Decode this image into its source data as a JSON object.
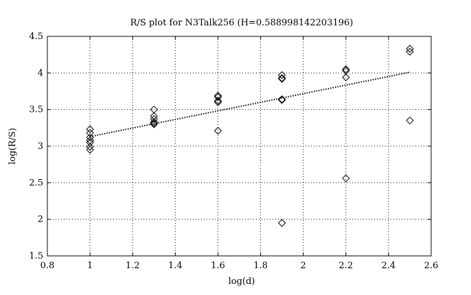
{
  "chart_data": {
    "type": "scatter",
    "title": "R/S plot for N3Talk256 (H=0.588998142203196)",
    "xlabel": "log(d)",
    "ylabel": "log(R/S)",
    "xlim": [
      0.8,
      2.6
    ],
    "ylim": [
      1.5,
      4.5
    ],
    "x_ticks": [
      0.8,
      1,
      1.2,
      1.4,
      1.6,
      1.8,
      2,
      2.2,
      2.4,
      2.6
    ],
    "x_tick_labels": [
      "0.8",
      "1",
      "1.2",
      "1.4",
      "1.6",
      "1.8",
      "2",
      "2.2",
      "2.4",
      "2.6"
    ],
    "y_ticks": [
      1.5,
      2,
      2.5,
      3,
      3.5,
      4,
      4.5
    ],
    "y_tick_labels": [
      "1.5",
      "2",
      "2.5",
      "3",
      "3.5",
      "4",
      "4.5"
    ],
    "grid": true,
    "grid_style": "dotted",
    "marker": "diamond",
    "color": "#000000",
    "series": [
      {
        "points": [
          [
            1.0,
            3.23
          ],
          [
            1.0,
            3.18
          ],
          [
            1.0,
            3.12
          ],
          [
            1.0,
            3.08
          ],
          [
            1.0,
            3.05
          ],
          [
            1.0,
            2.99
          ],
          [
            1.0,
            2.95
          ],
          [
            1.3,
            3.5
          ],
          [
            1.3,
            3.41
          ],
          [
            1.3,
            3.37
          ],
          [
            1.3,
            3.33
          ],
          [
            1.3,
            3.31
          ],
          [
            1.3,
            3.3
          ],
          [
            1.6,
            3.69
          ],
          [
            1.6,
            3.67
          ],
          [
            1.6,
            3.62
          ],
          [
            1.6,
            3.6
          ],
          [
            1.6,
            3.21
          ],
          [
            1.9,
            3.97
          ],
          [
            1.9,
            3.93
          ],
          [
            1.9,
            3.92
          ],
          [
            1.9,
            3.64
          ],
          [
            1.9,
            3.63
          ],
          [
            1.9,
            1.95
          ],
          [
            2.2,
            4.05
          ],
          [
            2.2,
            4.03
          ],
          [
            2.2,
            3.94
          ],
          [
            2.2,
            2.56
          ],
          [
            2.5,
            4.33
          ],
          [
            2.5,
            4.29
          ],
          [
            2.5,
            3.35
          ]
        ]
      }
    ],
    "fit_line": {
      "x": [
        1.0,
        2.5
      ],
      "y": [
        3.13,
        4.01
      ],
      "style": "dotted"
    }
  }
}
